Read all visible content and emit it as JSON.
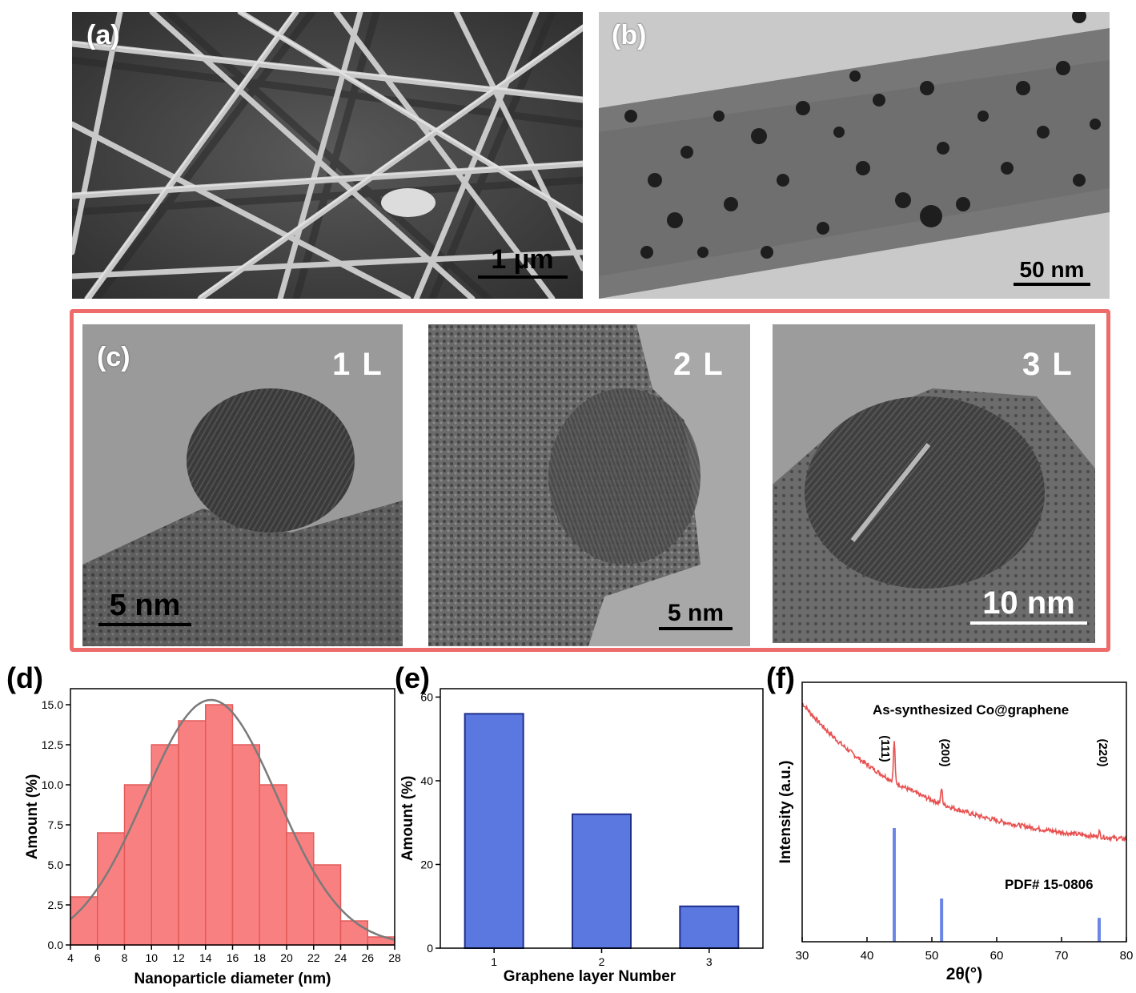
{
  "panels": {
    "a": {
      "label": "(a)",
      "scale": "1 µm"
    },
    "b": {
      "label": "(b)",
      "scale": "50 nm"
    },
    "c": {
      "label": "(c)",
      "images": [
        {
          "layer": "1 L",
          "scale": "5 nm"
        },
        {
          "layer": "2 L",
          "scale": "5 nm"
        },
        {
          "layer": "3 L",
          "scale": "10 nm"
        }
      ]
    },
    "d": {
      "label": "(d)"
    },
    "e": {
      "label": "(e)"
    },
    "f": {
      "label": "(f)"
    }
  },
  "chart_data": [
    {
      "panel": "d",
      "type": "bar",
      "subtype": "histogram with normal fit",
      "xlabel": "Nanoparticle diameter (nm)",
      "ylabel": "Amount (%)",
      "xlim": [
        4,
        28
      ],
      "ylim": [
        0,
        16
      ],
      "xticks": [
        "4",
        "6",
        "8",
        "10",
        "12",
        "14",
        "16",
        "18",
        "20",
        "22",
        "24",
        "26",
        "28"
      ],
      "yticks": [
        "0.0",
        "2.5",
        "5.0",
        "7.5",
        "10.0",
        "12.5",
        "15.0"
      ],
      "bins": [
        [
          4,
          6
        ],
        [
          6,
          8
        ],
        [
          8,
          10
        ],
        [
          10,
          12
        ],
        [
          12,
          14
        ],
        [
          14,
          16
        ],
        [
          16,
          18
        ],
        [
          18,
          20
        ],
        [
          20,
          22
        ],
        [
          22,
          24
        ],
        [
          24,
          26
        ],
        [
          26,
          28
        ]
      ],
      "values": [
        3,
        7,
        10,
        12.5,
        14,
        15,
        12.5,
        10,
        7,
        5,
        1.5,
        0.5
      ],
      "fit": {
        "type": "gaussian",
        "peak": 15.3,
        "center": 14.4,
        "sigma": 4.9
      },
      "colors": {
        "bar": "#f98080",
        "edge": "#e35a5a",
        "fit": "#7a7a7a"
      }
    },
    {
      "panel": "e",
      "type": "bar",
      "xlabel": "Graphene layer Number",
      "ylabel": "Amount (%)",
      "categories": [
        "1",
        "2",
        "3"
      ],
      "values": [
        56,
        32,
        10
      ],
      "ylim": [
        0,
        62
      ],
      "yticks": [
        "0",
        "20",
        "40",
        "60"
      ],
      "colors": {
        "bar": "#5b78e0",
        "edge": "#1f2f8a"
      }
    },
    {
      "panel": "f",
      "type": "line",
      "xlabel": "2θ(°)",
      "ylabel": "Intensity (a.u.)",
      "xlim": [
        30,
        80
      ],
      "xticks": [
        "30",
        "40",
        "50",
        "60",
        "70",
        "80"
      ],
      "series": [
        {
          "name": "As-synthesized Co@graphene",
          "color": "#e85050",
          "background": {
            "start": 0.92,
            "end": 0.36,
            "decay": 0.055
          },
          "peaks": [
            {
              "x": 44.2,
              "height": 0.16,
              "label": "(111)"
            },
            {
              "x": 51.5,
              "height": 0.06,
              "label": "(200)"
            },
            {
              "x": 75.8,
              "height": 0.02,
              "label": "(220)"
            }
          ]
        },
        {
          "name": "PDF# 15-0806",
          "color": "#6b86e6",
          "sticks": [
            {
              "x": 44.2,
              "height": 1.0
            },
            {
              "x": 51.5,
              "height": 0.38
            },
            {
              "x": 75.8,
              "height": 0.21
            }
          ]
        }
      ]
    }
  ]
}
